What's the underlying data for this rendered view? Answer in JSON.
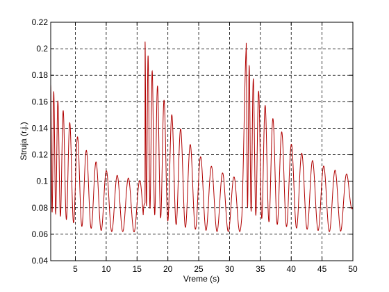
{
  "chart_data": {
    "type": "line",
    "title": "",
    "xlabel": "Vreme (s)",
    "ylabel": "Struja (r.j.)",
    "xlim": [
      1,
      50
    ],
    "ylim": [
      0.04,
      0.22
    ],
    "xticks": [
      5,
      10,
      15,
      20,
      25,
      30,
      35,
      40,
      45,
      50
    ],
    "xtick_labels": [
      "5",
      "10",
      "15",
      "20",
      "25",
      "30",
      "35",
      "40",
      "45",
      "50"
    ],
    "yticks": [
      0.04,
      0.06,
      0.08,
      0.1,
      0.12,
      0.14,
      0.16,
      0.18,
      0.2,
      0.22
    ],
    "ytick_labels": [
      "0.04",
      "0.06",
      "0.08",
      "0.1",
      "0.12",
      "0.14",
      "0.16",
      "0.18",
      "0.2",
      "0.22"
    ],
    "grid": true,
    "line_color": "#b00000",
    "series": [
      {
        "name": "",
        "description_points": {
          "x": [
            1,
            2,
            4,
            6,
            8,
            10,
            12,
            14,
            16,
            16.3,
            17,
            18,
            20,
            22,
            24,
            26,
            28,
            30,
            32,
            32.7,
            33,
            34,
            36,
            38,
            40,
            42,
            44,
            46,
            48,
            50
          ],
          "upper": [
            0.173,
            0.162,
            0.145,
            0.128,
            0.116,
            0.108,
            0.104,
            0.102,
            0.1,
            0.206,
            0.19,
            0.175,
            0.155,
            0.14,
            0.125,
            0.115,
            0.108,
            0.104,
            0.102,
            0.205,
            0.19,
            0.175,
            0.155,
            0.14,
            0.128,
            0.12,
            0.114,
            0.11,
            0.107,
            0.104
          ],
          "lower": [
            0.077,
            0.075,
            0.07,
            0.066,
            0.064,
            0.062,
            0.062,
            0.062,
            0.061,
            0.082,
            0.08,
            0.074,
            0.07,
            0.066,
            0.064,
            0.063,
            0.062,
            0.062,
            0.062,
            0.081,
            0.08,
            0.075,
            0.07,
            0.067,
            0.065,
            0.064,
            0.063,
            0.062,
            0.062,
            0.08
          ]
        }
      }
    ]
  }
}
